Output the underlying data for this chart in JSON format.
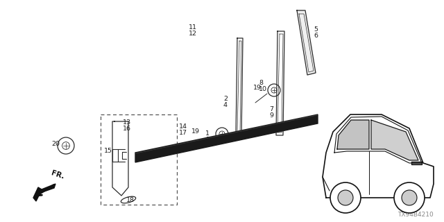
{
  "bg_color": "#ffffff",
  "watermark": "TX94B4210",
  "color_line": "#2a2a2a",
  "color_dark": "#111111",
  "color_strip": "#1a1a1a"
}
